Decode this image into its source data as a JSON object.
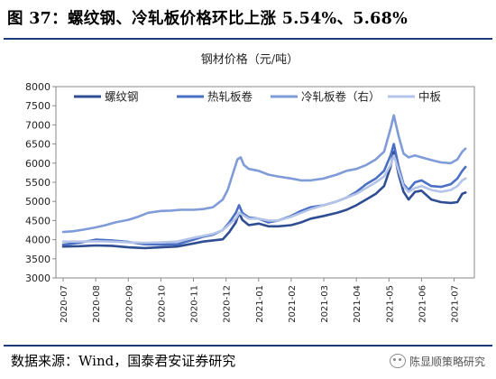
{
  "figure": {
    "title": "图 37：螺纹钢、冷轧板价格环比上涨 5.54%、5.68%",
    "source": "数据来源：Wind，国泰君安证券研究",
    "watermark": "陈显顺策略研究"
  },
  "chart_data": {
    "type": "line",
    "title": "钢材价格（元/吨）",
    "xlabel": "",
    "ylabel": "",
    "ylim": [
      3000,
      8000
    ],
    "yticks": [
      3000,
      3500,
      4000,
      4500,
      5000,
      5500,
      6000,
      6500,
      7000,
      7500,
      8000
    ],
    "categories": [
      "2020-07",
      "2020-08",
      "2020-09",
      "2020-10",
      "2020-11",
      "2020-12",
      "2021-01",
      "2021-02",
      "2021-03",
      "2021-04",
      "2021-05",
      "2021-06",
      "2021-07"
    ],
    "grid": false,
    "legend": "top",
    "series": [
      {
        "name": "螺纹钢",
        "color": "#2e4d92",
        "points": [
          [
            0,
            3820
          ],
          [
            0.5,
            3830
          ],
          [
            1,
            3850
          ],
          [
            1.5,
            3840
          ],
          [
            2,
            3800
          ],
          [
            2.5,
            3780
          ],
          [
            3,
            3800
          ],
          [
            3.5,
            3820
          ],
          [
            4,
            3900
          ],
          [
            4.3,
            3950
          ],
          [
            4.6,
            3980
          ],
          [
            4.9,
            4010
          ],
          [
            5.1,
            4200
          ],
          [
            5.3,
            4450
          ],
          [
            5.4,
            4700
          ],
          [
            5.5,
            4520
          ],
          [
            5.7,
            4380
          ],
          [
            6,
            4420
          ],
          [
            6.3,
            4350
          ],
          [
            6.6,
            4350
          ],
          [
            7,
            4380
          ],
          [
            7.3,
            4450
          ],
          [
            7.6,
            4550
          ],
          [
            8,
            4620
          ],
          [
            8.4,
            4700
          ],
          [
            8.7,
            4780
          ],
          [
            9,
            4900
          ],
          [
            9.3,
            5050
          ],
          [
            9.6,
            5200
          ],
          [
            9.85,
            5400
          ],
          [
            10.05,
            5900
          ],
          [
            10.15,
            6300
          ],
          [
            10.3,
            5700
          ],
          [
            10.45,
            5250
          ],
          [
            10.6,
            5050
          ],
          [
            10.8,
            5250
          ],
          [
            11,
            5280
          ],
          [
            11.3,
            5050
          ],
          [
            11.6,
            4980
          ],
          [
            11.9,
            4960
          ],
          [
            12.1,
            4980
          ],
          [
            12.25,
            5200
          ],
          [
            12.35,
            5230
          ]
        ]
      },
      {
        "name": "热轧板卷",
        "color": "#4a6fc4",
        "points": [
          [
            0,
            3870
          ],
          [
            0.5,
            3920
          ],
          [
            1,
            4000
          ],
          [
            1.5,
            3980
          ],
          [
            2,
            3940
          ],
          [
            2.5,
            3880
          ],
          [
            3,
            3870
          ],
          [
            3.5,
            3880
          ],
          [
            4,
            4000
          ],
          [
            4.3,
            4080
          ],
          [
            4.6,
            4130
          ],
          [
            4.9,
            4250
          ],
          [
            5.1,
            4450
          ],
          [
            5.3,
            4700
          ],
          [
            5.4,
            4900
          ],
          [
            5.5,
            4700
          ],
          [
            5.7,
            4580
          ],
          [
            6,
            4550
          ],
          [
            6.3,
            4450
          ],
          [
            6.6,
            4500
          ],
          [
            7,
            4620
          ],
          [
            7.3,
            4750
          ],
          [
            7.6,
            4850
          ],
          [
            8,
            4900
          ],
          [
            8.4,
            5000
          ],
          [
            8.7,
            5100
          ],
          [
            9,
            5250
          ],
          [
            9.3,
            5450
          ],
          [
            9.6,
            5600
          ],
          [
            9.85,
            5800
          ],
          [
            10.05,
            6200
          ],
          [
            10.15,
            6500
          ],
          [
            10.3,
            5900
          ],
          [
            10.45,
            5450
          ],
          [
            10.6,
            5300
          ],
          [
            10.8,
            5500
          ],
          [
            11,
            5550
          ],
          [
            11.3,
            5400
          ],
          [
            11.6,
            5380
          ],
          [
            11.9,
            5450
          ],
          [
            12.1,
            5600
          ],
          [
            12.25,
            5800
          ],
          [
            12.35,
            5900
          ]
        ]
      },
      {
        "name": "冷轧板卷（右）",
        "color": "#7f9bd8",
        "points": [
          [
            0,
            4200
          ],
          [
            0.3,
            4220
          ],
          [
            0.6,
            4260
          ],
          [
            1,
            4320
          ],
          [
            1.3,
            4380
          ],
          [
            1.6,
            4450
          ],
          [
            2,
            4520
          ],
          [
            2.3,
            4600
          ],
          [
            2.6,
            4700
          ],
          [
            3,
            4750
          ],
          [
            3.3,
            4760
          ],
          [
            3.6,
            4780
          ],
          [
            4,
            4780
          ],
          [
            4.3,
            4800
          ],
          [
            4.6,
            4850
          ],
          [
            4.9,
            5050
          ],
          [
            5.05,
            5300
          ],
          [
            5.2,
            5700
          ],
          [
            5.35,
            6100
          ],
          [
            5.45,
            6150
          ],
          [
            5.55,
            5950
          ],
          [
            5.7,
            5850
          ],
          [
            6,
            5800
          ],
          [
            6.3,
            5700
          ],
          [
            6.6,
            5650
          ],
          [
            7,
            5600
          ],
          [
            7.3,
            5550
          ],
          [
            7.6,
            5550
          ],
          [
            8,
            5600
          ],
          [
            8.4,
            5700
          ],
          [
            8.7,
            5800
          ],
          [
            9,
            5850
          ],
          [
            9.3,
            5950
          ],
          [
            9.6,
            6100
          ],
          [
            9.85,
            6300
          ],
          [
            10.05,
            6900
          ],
          [
            10.15,
            7250
          ],
          [
            10.3,
            6700
          ],
          [
            10.45,
            6250
          ],
          [
            10.6,
            6150
          ],
          [
            10.8,
            6200
          ],
          [
            11,
            6150
          ],
          [
            11.3,
            6080
          ],
          [
            11.6,
            6020
          ],
          [
            11.9,
            6000
          ],
          [
            12.1,
            6100
          ],
          [
            12.25,
            6300
          ],
          [
            12.35,
            6380
          ]
        ]
      },
      {
        "name": "中板",
        "color": "#b4c4e8",
        "points": [
          [
            0,
            3950
          ],
          [
            0.5,
            3950
          ],
          [
            1,
            3960
          ],
          [
            1.5,
            3950
          ],
          [
            2,
            3930
          ],
          [
            2.5,
            3920
          ],
          [
            3,
            3930
          ],
          [
            3.5,
            3950
          ],
          [
            4,
            4050
          ],
          [
            4.3,
            4100
          ],
          [
            4.6,
            4150
          ],
          [
            4.9,
            4250
          ],
          [
            5.1,
            4400
          ],
          [
            5.3,
            4550
          ],
          [
            5.4,
            4700
          ],
          [
            5.5,
            4650
          ],
          [
            5.7,
            4550
          ],
          [
            6,
            4550
          ],
          [
            6.3,
            4500
          ],
          [
            6.6,
            4500
          ],
          [
            7,
            4600
          ],
          [
            7.3,
            4700
          ],
          [
            7.6,
            4800
          ],
          [
            8,
            4900
          ],
          [
            8.4,
            5000
          ],
          [
            8.7,
            5100
          ],
          [
            9,
            5200
          ],
          [
            9.3,
            5350
          ],
          [
            9.6,
            5500
          ],
          [
            9.85,
            5650
          ],
          [
            10.05,
            5950
          ],
          [
            10.15,
            6200
          ],
          [
            10.3,
            5800
          ],
          [
            10.45,
            5400
          ],
          [
            10.6,
            5250
          ],
          [
            10.8,
            5350
          ],
          [
            11,
            5400
          ],
          [
            11.3,
            5300
          ],
          [
            11.6,
            5250
          ],
          [
            11.9,
            5300
          ],
          [
            12.1,
            5400
          ],
          [
            12.25,
            5550
          ],
          [
            12.35,
            5600
          ]
        ]
      }
    ]
  }
}
